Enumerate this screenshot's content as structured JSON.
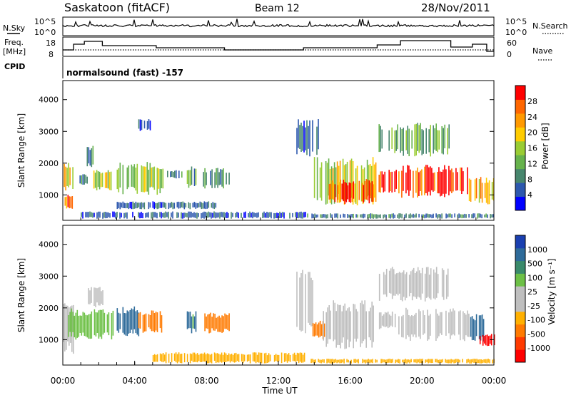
{
  "header": {
    "title": "Saskatoon (fitACF)",
    "beam": "Beam 12",
    "date": "28/Nov/2011"
  },
  "panels": {
    "nsky_label": "N.Sky",
    "nsky_ticks": [
      "10^5",
      "10^0"
    ],
    "nsearch_label": "N.Search",
    "freq_label_1": "Freq.",
    "freq_label_2": "[MHz]",
    "freq_ticks": [
      "18",
      "8"
    ],
    "nave_label": "Nave",
    "nave_ticks": [
      "60",
      "0"
    ],
    "cpid_label": "CPID",
    "cpid_value": "normalsound (fast) -157"
  },
  "colors": {
    "power_scale": [
      "#0000ff",
      "#2d58ae",
      "#47866d",
      "#66b24c",
      "#99cc33",
      "#ffcc00",
      "#ff9900",
      "#ff6600",
      "#ff0000"
    ],
    "velocity_scale": [
      "#1a3fb0",
      "#2e6b9a",
      "#3a8a6b",
      "#6dc046",
      "#bfbfbf",
      "#bfbfbf",
      "#ffb000",
      "#ff7a00",
      "#ff3a00",
      "#ff0000"
    ],
    "ground_scatter": "#bfbfbf"
  },
  "chart_data": [
    {
      "type": "heatmap",
      "name": "power",
      "ylabel": "Slant Range [km]",
      "ylim": [
        200,
        4600
      ],
      "y_ticks": [
        1000,
        2000,
        3000,
        4000
      ],
      "colorbar_label": "Power [dB]",
      "colorbar_ticks": [
        "28",
        "24",
        "20",
        "16",
        "12",
        "8",
        "4"
      ],
      "colorbar_range": [
        0,
        32
      ],
      "regions": [
        {
          "t0": 0.05,
          "t1": 0.6,
          "r0": 1100,
          "r1": 2050,
          "value": 18
        },
        {
          "t0": 0.1,
          "t1": 0.55,
          "r0": 550,
          "r1": 1050,
          "value": 26
        },
        {
          "t0": 0.85,
          "t1": 1.4,
          "r0": 1300,
          "r1": 1650,
          "value": 9
        },
        {
          "t0": 1.25,
          "t1": 1.7,
          "r0": 1800,
          "r1": 2600,
          "value": 8
        },
        {
          "t0": 1.7,
          "t1": 2.8,
          "r0": 1100,
          "r1": 1800,
          "value": 17
        },
        {
          "t0": 3.0,
          "t1": 5.6,
          "r0": 1000,
          "r1": 2050,
          "value": 15
        },
        {
          "t0": 4.2,
          "t1": 4.9,
          "r0": 3000,
          "r1": 3400,
          "value": 6
        },
        {
          "t0": 5.8,
          "t1": 6.6,
          "r0": 1500,
          "r1": 1800,
          "value": 9
        },
        {
          "t0": 6.9,
          "t1": 7.4,
          "r0": 1200,
          "r1": 1900,
          "value": 11
        },
        {
          "t0": 7.8,
          "t1": 9.3,
          "r0": 1200,
          "r1": 1850,
          "value": 10
        },
        {
          "t0": 3.0,
          "t1": 8.5,
          "r0": 550,
          "r1": 800,
          "value": 6
        },
        {
          "t0": 1.0,
          "t1": 13.5,
          "r0": 250,
          "r1": 480,
          "value": 6
        },
        {
          "t0": 13.0,
          "t1": 14.2,
          "r0": 2200,
          "r1": 3400,
          "value": 7
        },
        {
          "t0": 13.9,
          "t1": 17.4,
          "r0": 650,
          "r1": 2200,
          "value": 17
        },
        {
          "t0": 14.8,
          "t1": 17.4,
          "r0": 700,
          "r1": 1500,
          "value": 28
        },
        {
          "t0": 17.5,
          "t1": 18.6,
          "r0": 1050,
          "r1": 1800,
          "value": 29
        },
        {
          "t0": 17.5,
          "t1": 21.5,
          "r0": 2200,
          "r1": 3300,
          "value": 12
        },
        {
          "t0": 18.6,
          "t1": 22.6,
          "r0": 900,
          "r1": 1950,
          "value": 29
        },
        {
          "t0": 22.6,
          "t1": 24.0,
          "r0": 700,
          "r1": 1600,
          "value": 22
        },
        {
          "t0": 13.6,
          "t1": 24.0,
          "r0": 250,
          "r1": 420,
          "value": 8
        }
      ]
    },
    {
      "type": "heatmap",
      "name": "velocity",
      "ylabel": "Slant Range [km]",
      "ylim": [
        200,
        4600
      ],
      "y_ticks": [
        1000,
        2000,
        3000,
        4000
      ],
      "xlabel": "Time UT",
      "x_ticks": [
        "00:00",
        "04:00",
        "08:00",
        "12:00",
        "16:00",
        "20:00",
        "00:00"
      ],
      "xlim": [
        0,
        24
      ],
      "colorbar_label": "Velocity [m s⁻¹]",
      "colorbar_ticks": [
        "1000",
        "500",
        "100",
        "25",
        "-25",
        "-100",
        "-500",
        "-1000"
      ],
      "regions": [
        {
          "t0": 0.0,
          "t1": 0.6,
          "r0": 500,
          "r1": 2300,
          "value": 0
        },
        {
          "t0": 0.3,
          "t1": 2.8,
          "r0": 1000,
          "r1": 2000,
          "value": 80
        },
        {
          "t0": 1.4,
          "t1": 2.2,
          "r0": 2000,
          "r1": 2700,
          "value": 0
        },
        {
          "t0": 3.0,
          "t1": 4.2,
          "r0": 1100,
          "r1": 2050,
          "value": 150
        },
        {
          "t0": 4.2,
          "t1": 5.5,
          "r0": 1200,
          "r1": 1950,
          "value": -200
        },
        {
          "t0": 6.9,
          "t1": 7.4,
          "r0": 1200,
          "r1": 1900,
          "value": 120
        },
        {
          "t0": 7.8,
          "t1": 9.3,
          "r0": 1200,
          "r1": 1850,
          "value": -250
        },
        {
          "t0": 5.0,
          "t1": 13.5,
          "r0": 250,
          "r1": 600,
          "value": -60
        },
        {
          "t0": 13.0,
          "t1": 14.0,
          "r0": 1200,
          "r1": 3400,
          "value": 0
        },
        {
          "t0": 13.9,
          "t1": 14.6,
          "r0": 1000,
          "r1": 1600,
          "value": -400
        },
        {
          "t0": 14.4,
          "t1": 17.4,
          "r0": 700,
          "r1": 2250,
          "value": 0
        },
        {
          "t0": 17.6,
          "t1": 18.6,
          "r0": 1300,
          "r1": 1900,
          "value": 0
        },
        {
          "t0": 18.6,
          "t1": 22.6,
          "r0": 950,
          "r1": 2000,
          "value": 0
        },
        {
          "t0": 17.6,
          "t1": 21.5,
          "r0": 2200,
          "r1": 3300,
          "value": 0
        },
        {
          "t0": 22.6,
          "t1": 23.4,
          "r0": 900,
          "r1": 1800,
          "value": 400
        },
        {
          "t0": 23.2,
          "t1": 24.0,
          "r0": 800,
          "r1": 1200,
          "value": -700
        },
        {
          "t0": 13.8,
          "t1": 24.0,
          "r0": 250,
          "r1": 400,
          "value": -60
        }
      ]
    }
  ]
}
